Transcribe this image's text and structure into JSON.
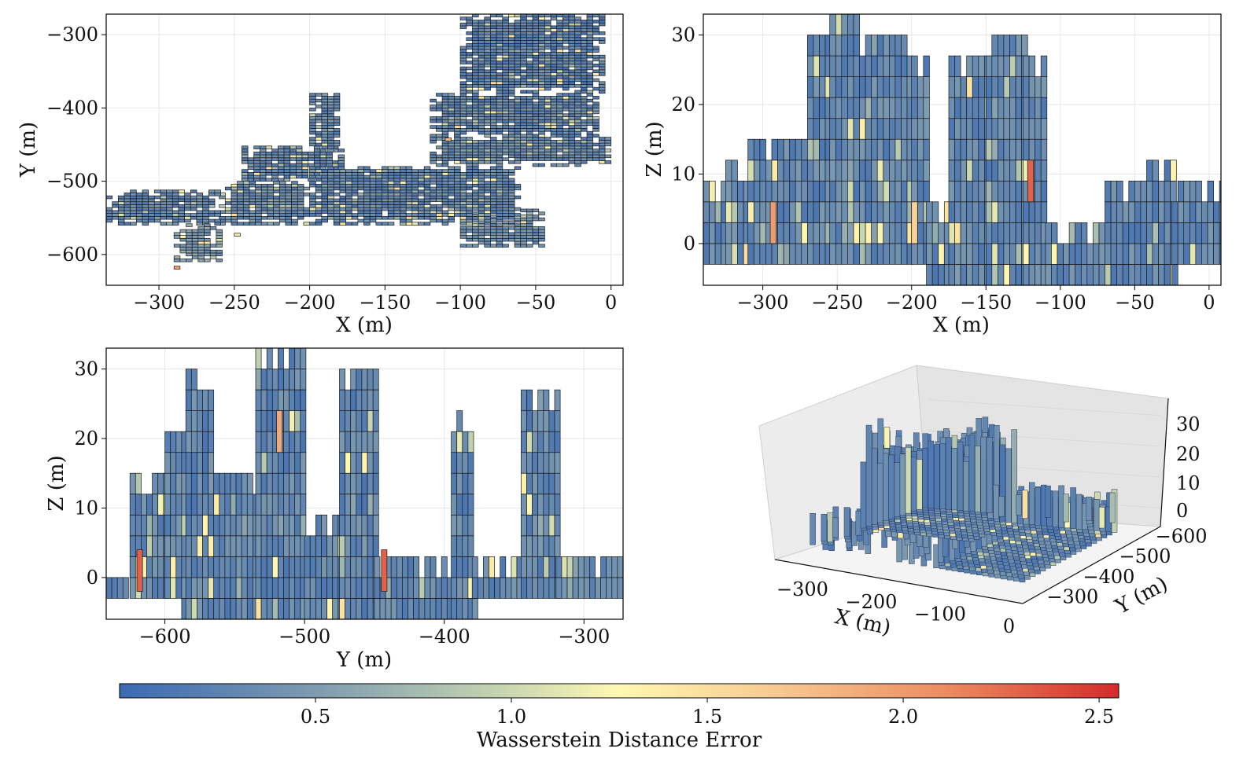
{
  "chart_data": [
    {
      "type": "heatmap",
      "subtype": "voxel-projection",
      "title": "",
      "xlabel": "X (m)",
      "ylabel": "Y (m)",
      "xlim": [
        -335,
        8
      ],
      "ylim": [
        -642,
        -272
      ],
      "xticks": [
        -300,
        -250,
        -200,
        -150,
        -100,
        -50,
        0
      ],
      "yticks": [
        -300,
        -400,
        -500,
        -600
      ],
      "xtick_labels": [
        "−300",
        "−250",
        "−200",
        "−150",
        "−100",
        "−50",
        "0"
      ],
      "ytick_labels": [
        "−300",
        "−400",
        "−500",
        "−600"
      ],
      "grid": true,
      "cell_size": [
        4,
        4
      ],
      "regions": [
        {
          "x": [
            -100,
            -5
          ],
          "y": [
            -380,
            -275
          ],
          "v": 0.25
        },
        {
          "x": [
            -120,
            -10
          ],
          "y": [
            -440,
            -380
          ],
          "v": 0.3
        },
        {
          "x": [
            -120,
            0
          ],
          "y": [
            -480,
            -440
          ],
          "v": 0.35
        },
        {
          "x": [
            -200,
            -60
          ],
          "y": [
            -560,
            -480
          ],
          "v": 0.3
        },
        {
          "x": [
            -260,
            -200
          ],
          "y": [
            -560,
            -500
          ],
          "v": 0.35
        },
        {
          "x": [
            -335,
            -260
          ],
          "y": [
            -560,
            -515
          ],
          "v": 0.3
        },
        {
          "x": [
            -100,
            -45
          ],
          "y": [
            -590,
            -540
          ],
          "v": 0.4
        },
        {
          "x": [
            -290,
            -260
          ],
          "y": [
            -610,
            -560
          ],
          "v": 0.5
        },
        {
          "x": [
            -245,
            -180
          ],
          "y": [
            -500,
            -455
          ],
          "v": 0.3
        },
        {
          "x": [
            -200,
            -180
          ],
          "y": [
            -460,
            -380
          ],
          "v": 0.35
        }
      ],
      "hotspots": [
        {
          "x": -290,
          "y": -620,
          "v": 2.0
        },
        {
          "x": -110,
          "y": -445,
          "v": 1.8
        },
        {
          "x": -250,
          "y": -575,
          "v": 1.4
        },
        {
          "x": -80,
          "y": -500,
          "v": 1.3
        }
      ]
    },
    {
      "type": "heatmap",
      "subtype": "voxel-projection",
      "title": "",
      "xlabel": "X (m)",
      "ylabel": "Z (m)",
      "xlim": [
        -340,
        8
      ],
      "ylim": [
        -6,
        33
      ],
      "xticks": [
        -300,
        -250,
        -200,
        -150,
        -100,
        -50,
        0
      ],
      "yticks": [
        0,
        10,
        20,
        30
      ],
      "xtick_labels": [
        "−300",
        "−250",
        "−200",
        "−150",
        "−100",
        "−50",
        "0"
      ],
      "ytick_labels": [
        "0",
        "10",
        "20",
        "30"
      ],
      "grid": true,
      "cell_size": [
        4,
        3
      ],
      "column_tops": [
        {
          "x": [
            -340,
            -325
          ],
          "z": 9
        },
        {
          "x": [
            -325,
            -310
          ],
          "z": 12
        },
        {
          "x": [
            -310,
            -270
          ],
          "z": 15
        },
        {
          "x": [
            -270,
            -255
          ],
          "z": 30
        },
        {
          "x": [
            -255,
            -235
          ],
          "z": 33
        },
        {
          "x": [
            -235,
            -200
          ],
          "z": 30
        },
        {
          "x": [
            -200,
            -190
          ],
          "z": 27
        },
        {
          "x": [
            -190,
            -175
          ],
          "z": 6
        },
        {
          "x": [
            -175,
            -150
          ],
          "z": 27
        },
        {
          "x": [
            -150,
            -125
          ],
          "z": 30
        },
        {
          "x": [
            -125,
            -110
          ],
          "z": 27
        },
        {
          "x": [
            -110,
            -70
          ],
          "z": 3
        },
        {
          "x": [
            -70,
            -50
          ],
          "z": 9
        },
        {
          "x": [
            -50,
            -25
          ],
          "z": 12
        },
        {
          "x": [
            -25,
            8
          ],
          "z": 9
        }
      ],
      "column_bottom_rule": "-3 except x in [-190,-25] down to -6",
      "hotspots": [
        {
          "x": -122,
          "z": 6,
          "v": 2.3
        },
        {
          "x": -295,
          "z": 0,
          "v": 2.0
        },
        {
          "x": -200,
          "z": 0,
          "v": 1.6
        }
      ]
    },
    {
      "type": "heatmap",
      "subtype": "voxel-projection",
      "title": "",
      "xlabel": "Y (m)",
      "ylabel": "Z (m)",
      "xlim": [
        -642,
        -272
      ],
      "ylim": [
        -6,
        33
      ],
      "xticks": [
        -600,
        -500,
        -400,
        -300
      ],
      "yticks": [
        0,
        10,
        20,
        30
      ],
      "xtick_labels": [
        "−600",
        "−500",
        "−400",
        "−300"
      ],
      "ytick_labels": [
        "0",
        "10",
        "20",
        "30"
      ],
      "grid": true,
      "cell_size": [
        4,
        3
      ],
      "column_tops": [
        {
          "x": [
            -642,
            -625
          ],
          "z": 0
        },
        {
          "x": [
            -625,
            -600
          ],
          "z": 15
        },
        {
          "x": [
            -600,
            -585
          ],
          "z": 21
        },
        {
          "x": [
            -585,
            -565
          ],
          "z": 30
        },
        {
          "x": [
            -565,
            -535
          ],
          "z": 15
        },
        {
          "x": [
            -535,
            -500
          ],
          "z": 33
        },
        {
          "x": [
            -500,
            -475
          ],
          "z": 9
        },
        {
          "x": [
            -475,
            -450
          ],
          "z": 30
        },
        {
          "x": [
            -450,
            -395
          ],
          "z": 3
        },
        {
          "x": [
            -395,
            -380
          ],
          "z": 24
        },
        {
          "x": [
            -380,
            -345
          ],
          "z": 3
        },
        {
          "x": [
            -345,
            -320
          ],
          "z": 27
        },
        {
          "x": [
            -320,
            -272
          ],
          "z": 3
        }
      ],
      "column_bottom_rule": "-3 except x in [-590,-380] down to -6",
      "hotspots": [
        {
          "x": -620,
          "z": -2,
          "v": 2.3
        },
        {
          "x": -445,
          "z": -2,
          "v": 2.3
        },
        {
          "x": -520,
          "z": 18,
          "v": 1.9
        }
      ]
    },
    {
      "type": "other",
      "subtype": "3d-voxel",
      "title": "",
      "xlabel": "X (m)",
      "ylabel": "Y (m)",
      "zlabel": "",
      "xticks": [
        -300,
        -200,
        -100,
        0
      ],
      "yticks": [
        -300,
        -400,
        -500,
        -600
      ],
      "zticks": [
        0,
        10,
        20,
        30
      ],
      "xtick_labels": [
        "−300",
        "−200",
        "−100",
        "0"
      ],
      "ytick_labels": [
        "−300",
        "−400",
        "−500",
        "−600"
      ],
      "ztick_labels": [
        "0",
        "10",
        "20",
        "30"
      ]
    }
  ],
  "colorbar": {
    "label": "Wasserstein Distance Error",
    "range": [
      0.0,
      2.55
    ],
    "ticks": [
      0.5,
      1.0,
      1.5,
      2.0,
      2.5
    ],
    "tick_labels": [
      "0.5",
      "1.0",
      "1.5",
      "2.0",
      "2.5"
    ],
    "colormap": [
      "#3b6ab3",
      "#7f9cb0",
      "#c5d4b0",
      "#fff8b2",
      "#f7c892",
      "#eb8b60",
      "#d42a2a"
    ]
  }
}
